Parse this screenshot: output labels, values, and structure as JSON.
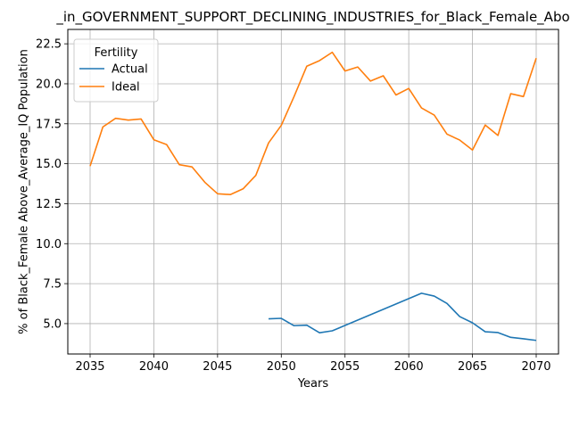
{
  "chart_data": {
    "type": "line",
    "title": "_in_GOVERNMENT_SUPPORT_DECLINING_INDUSTRIES_for_Black_Female_Abo",
    "xlabel": "Years",
    "ylabel": "% of Black_Female Above_Average_IQ Population",
    "xlim": [
      2033.25,
      2071.75
    ],
    "ylim": [
      3.1,
      23.4
    ],
    "xticks": [
      2035,
      2040,
      2045,
      2050,
      2055,
      2060,
      2065,
      2070
    ],
    "xtick_labels": [
      "2035",
      "2040",
      "2045",
      "2050",
      "2055",
      "2060",
      "2065",
      "2070"
    ],
    "yticks": [
      5.0,
      7.5,
      10.0,
      12.5,
      15.0,
      17.5,
      20.0,
      22.5
    ],
    "ytick_labels": [
      "5.0",
      "7.5",
      "10.0",
      "12.5",
      "15.0",
      "17.5",
      "20.0",
      "22.5"
    ],
    "grid": true,
    "legend": {
      "title": "Fertility",
      "placement": "upper-left"
    },
    "series": [
      {
        "name": "Actual",
        "color": "#1f77b4",
        "x": [
          2049,
          2050,
          2051,
          2052,
          2053,
          2054,
          2061,
          2062,
          2063,
          2064,
          2065,
          2066,
          2067,
          2068,
          2069,
          2070
        ],
        "values": [
          5.3,
          5.33,
          4.87,
          4.9,
          4.43,
          4.55,
          6.9,
          6.72,
          6.26,
          5.44,
          5.05,
          4.49,
          4.44,
          4.14,
          4.05,
          3.95
        ]
      },
      {
        "name": "Ideal",
        "color": "#ff7f0e",
        "x": [
          2035,
          2036,
          2037,
          2038,
          2039,
          2040,
          2041,
          2042,
          2043,
          2044,
          2045,
          2046,
          2047,
          2048,
          2049,
          2050,
          2051,
          2052,
          2053,
          2054,
          2055,
          2056,
          2057,
          2058,
          2059,
          2060,
          2061,
          2062,
          2063,
          2064,
          2065,
          2066,
          2067,
          2068,
          2069,
          2070
        ],
        "values": [
          14.85,
          17.3,
          17.84,
          17.73,
          17.8,
          16.5,
          16.2,
          14.94,
          14.8,
          13.84,
          13.12,
          13.07,
          13.43,
          14.27,
          16.3,
          17.4,
          19.2,
          21.1,
          21.45,
          21.97,
          20.8,
          21.05,
          20.17,
          20.5,
          19.3,
          19.71,
          18.49,
          18.04,
          16.85,
          16.48,
          15.86,
          17.42,
          16.77,
          19.38,
          19.2,
          21.6
        ]
      }
    ]
  }
}
